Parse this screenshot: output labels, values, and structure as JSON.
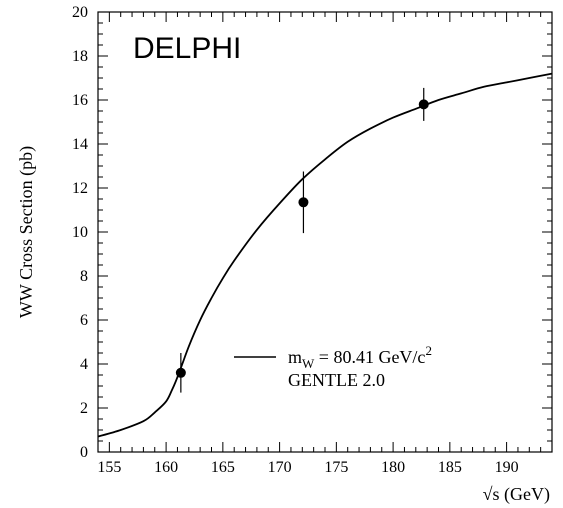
{
  "chart_data": {
    "type": "line",
    "experiment_label": "DELPHI",
    "ylabel": "WW Cross Section (pb)",
    "xlabel": "√s (GeV)",
    "xlim": [
      154,
      194
    ],
    "ylim": [
      0,
      20
    ],
    "x_ticks": [
      155,
      160,
      165,
      170,
      175,
      180,
      185,
      190
    ],
    "y_ticks": [
      0,
      2,
      4,
      6,
      8,
      10,
      12,
      14,
      16,
      18,
      20
    ],
    "series": [
      {
        "name": "m_W = 80.41 GeV/c²  GENTLE 2.0",
        "kind": "line",
        "x": [
          154,
          156,
          158,
          159,
          160,
          160.5,
          161,
          161.5,
          162,
          163,
          164,
          165,
          166,
          168,
          170,
          172,
          174,
          176,
          178,
          180,
          182,
          184,
          186,
          188,
          190,
          192,
          194
        ],
        "y": [
          0.7,
          1.0,
          1.4,
          1.8,
          2.3,
          2.8,
          3.4,
          4.1,
          4.8,
          6.0,
          7.0,
          7.9,
          8.7,
          10.1,
          11.3,
          12.4,
          13.3,
          14.1,
          14.7,
          15.2,
          15.6,
          16.0,
          16.3,
          16.6,
          16.8,
          17.0,
          17.2
        ]
      },
      {
        "name": "DELPHI data",
        "kind": "points",
        "x": [
          161.3,
          172.1,
          182.7
        ],
        "y": [
          3.6,
          11.35,
          15.8
        ],
        "yerr": [
          0.9,
          1.4,
          0.75
        ]
      }
    ],
    "legend": {
      "line1_main": "m",
      "line1_sub": "W",
      "line1_rest": " = 80.41 GeV/c",
      "line1_sup": "2",
      "line2": "GENTLE 2.0"
    },
    "grid": false,
    "legend_position": "center-right"
  }
}
